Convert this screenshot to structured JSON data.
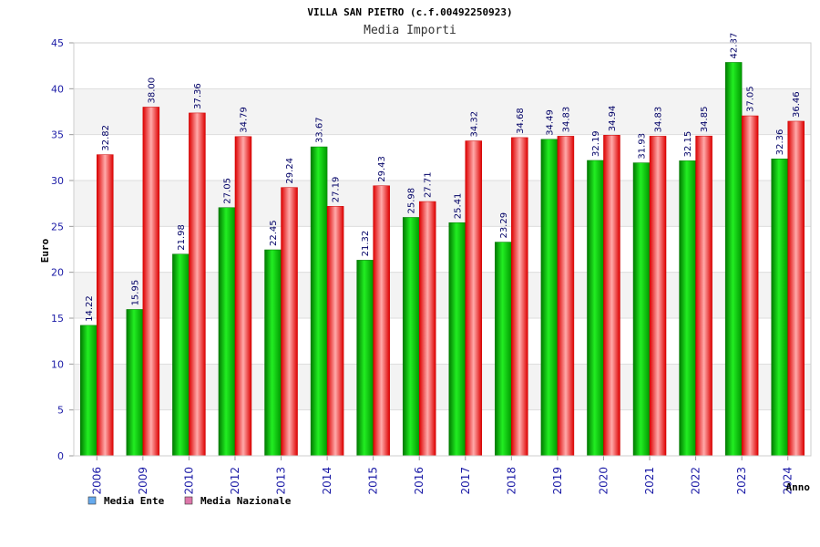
{
  "chart_data": {
    "type": "bar",
    "title": "VILLA SAN PIETRO (c.f.00492250923)",
    "subtitle": "Media Importi",
    "xlabel": "Anno",
    "ylabel": "Euro",
    "ylim": [
      0,
      45
    ],
    "yticks": [
      0,
      5,
      10,
      15,
      20,
      25,
      30,
      35,
      40,
      45
    ],
    "grid": true,
    "legend_position": "bottom-left",
    "categories": [
      "2006",
      "2009",
      "2010",
      "2012",
      "2013",
      "2014",
      "2015",
      "2016",
      "2017",
      "2018",
      "2019",
      "2020",
      "2021",
      "2022",
      "2023",
      "2024"
    ],
    "series": [
      {
        "name": "Media Ente",
        "color": "#00bb00",
        "legend_color": "#66aaee",
        "values": [
          14.22,
          15.95,
          21.98,
          27.05,
          22.45,
          33.67,
          21.32,
          25.98,
          25.41,
          23.29,
          34.49,
          32.19,
          31.93,
          32.15,
          42.87,
          32.36
        ],
        "labels": [
          "14.22",
          "15.95",
          "21.98",
          "27.05",
          "22.45",
          "33.67",
          "21.32",
          "25.98",
          "25.41",
          "23.29",
          "34.49",
          "32.19",
          "31.93",
          "32.15",
          "42.87",
          "32.36"
        ]
      },
      {
        "name": "Media Nazionale",
        "color": "#ee1111",
        "legend_color": "#dd77aa",
        "values": [
          32.82,
          38.0,
          37.36,
          34.79,
          29.24,
          27.19,
          29.43,
          27.71,
          34.32,
          34.68,
          34.83,
          34.94,
          34.83,
          34.85,
          37.05,
          36.46
        ],
        "labels": [
          "32.82",
          "38.00",
          "37.36",
          "34.79",
          "29.24",
          "27.19",
          "29.43",
          "27.71",
          "34.32",
          "34.68",
          "34.83",
          "34.94",
          "34.83",
          "34.85",
          "37.05",
          "36.46"
        ]
      }
    ]
  }
}
